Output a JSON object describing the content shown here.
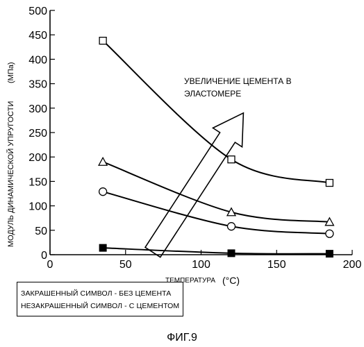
{
  "chart_data": {
    "type": "line",
    "xlabel_prefix": "ТЕМПЕРАТУРА",
    "xlabel_unit": "(°C)",
    "ylabel": "МОДУЛЬ ДИНАМИЧЕСКОЙ УПРУГОСТИ",
    "ylabel_unit": "(МПа)",
    "xlim": [
      0,
      200
    ],
    "ylim": [
      0,
      500
    ],
    "xticks": [
      0,
      50,
      100,
      150,
      200
    ],
    "yticks": [
      0,
      50,
      100,
      150,
      200,
      250,
      300,
      350,
      400,
      450,
      500
    ],
    "grid": false,
    "series": [
      {
        "marker": "open-square",
        "x": [
          35,
          120,
          185
        ],
        "y": [
          438,
          195,
          147
        ]
      },
      {
        "marker": "open-triangle",
        "x": [
          35,
          120,
          185
        ],
        "y": [
          190,
          87,
          67
        ]
      },
      {
        "marker": "open-circle",
        "x": [
          35,
          120,
          185
        ],
        "y": [
          129,
          58,
          43
        ]
      },
      {
        "marker": "filled-square",
        "x": [
          35,
          120,
          185
        ],
        "y": [
          14,
          3,
          2
        ]
      }
    ],
    "annotation": {
      "lines": [
        "УВЕЛИЧЕНИЕ ЦЕМЕНТА В",
        "ЭЛАСТОМЕРЕ"
      ],
      "arrow_from": [
        68,
        5
      ],
      "arrow_to": [
        128,
        290
      ]
    }
  },
  "legend": {
    "line1": "ЗАКРАШЕННЫЙ СИМВОЛ - БЕЗ ЦЕМЕНТА",
    "line2": "НЕЗАКРАШЕННЫЙ СИМВОЛ - С ЦЕМЕНТОМ"
  },
  "caption": "ФИГ.9"
}
